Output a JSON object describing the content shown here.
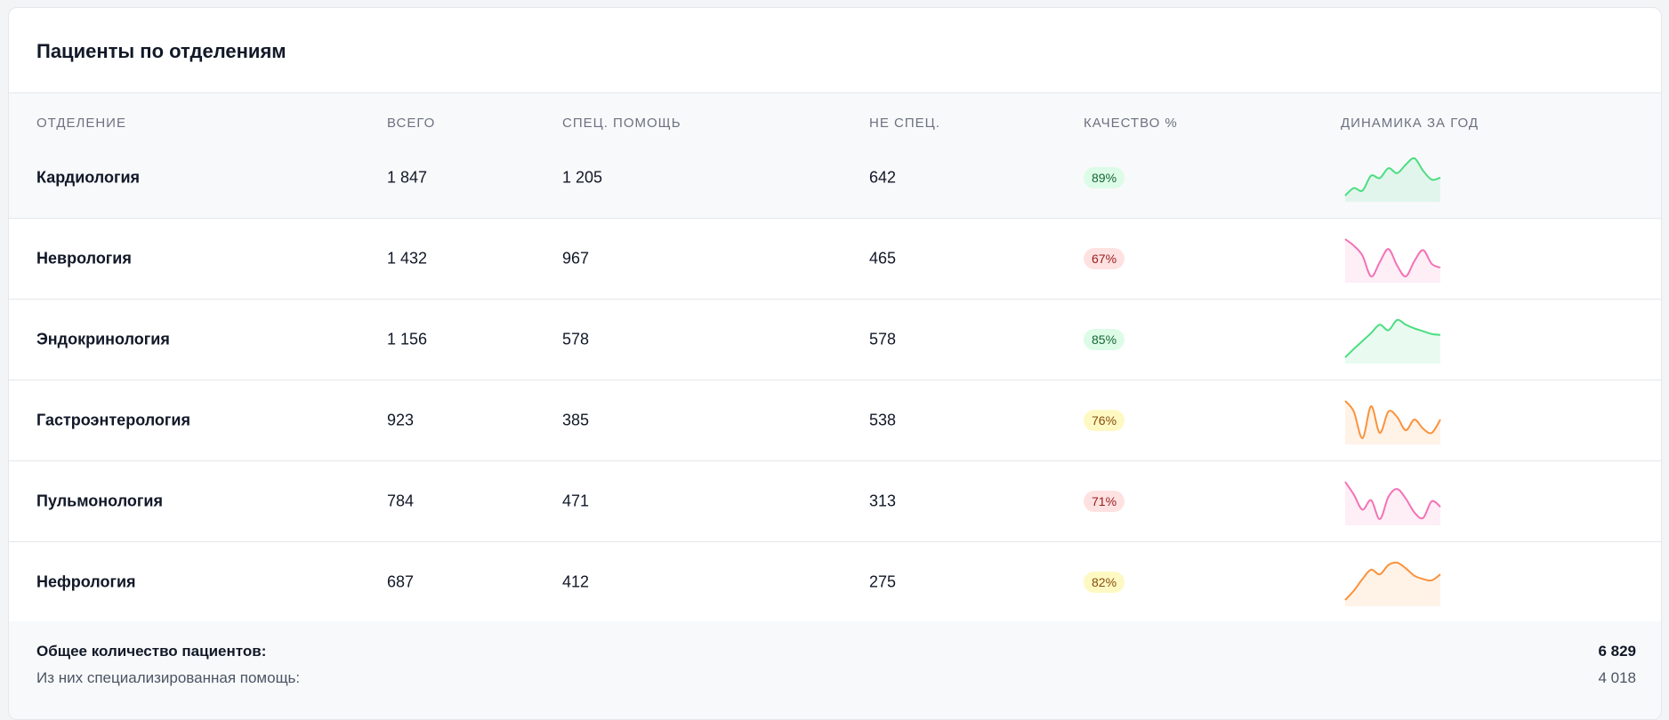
{
  "header": {
    "title": "Пациенты по отделениям"
  },
  "table": {
    "columns": [
      "ОТДЕЛЕНИЕ",
      "ВСЕГО",
      "СПЕЦ. ПОМОЩЬ",
      "НЕ СПЕЦ.",
      "КАЧЕСТВО %",
      "ДИНАМИКА ЗА ГОД"
    ],
    "rows": [
      {
        "department": "Кардиология",
        "total": "1 847",
        "special": "1 205",
        "non_special": "642",
        "quality": "89%",
        "color": "green",
        "trend": [
          10,
          25,
          20,
          50,
          45,
          65,
          55,
          72,
          85,
          60,
          42,
          46
        ]
      },
      {
        "department": "Неврология",
        "total": "1 432",
        "special": "967",
        "non_special": "465",
        "quality": "67%",
        "color": "pink",
        "trend": [
          90,
          78,
          60,
          22,
          48,
          72,
          42,
          22,
          50,
          70,
          45,
          38
        ]
      },
      {
        "department": "Эндокринология",
        "total": "1 156",
        "special": "578",
        "non_special": "578",
        "quality": "85%",
        "color": "green",
        "trend": [
          10,
          28,
          45,
          62,
          80,
          68,
          90,
          80,
          72,
          66,
          60,
          58
        ]
      },
      {
        "department": "Гастроэнтерология",
        "total": "923",
        "special": "385",
        "non_special": "538",
        "quality": "76%",
        "color": "orange",
        "trend": [
          90,
          70,
          20,
          80,
          30,
          70,
          60,
          35,
          55,
          38,
          30,
          55
        ]
      },
      {
        "department": "Пульмонология",
        "total": "784",
        "special": "471",
        "non_special": "313",
        "quality": "71%",
        "color": "pink",
        "trend": [
          85,
          62,
          35,
          52,
          18,
          58,
          72,
          55,
          30,
          20,
          50,
          40
        ]
      },
      {
        "department": "Нефрология",
        "total": "687",
        "special": "412",
        "non_special": "275",
        "quality": "82%",
        "color": "orange",
        "trend": [
          10,
          30,
          55,
          75,
          65,
          85,
          90,
          78,
          62,
          55,
          52,
          65
        ]
      }
    ]
  },
  "summary": [
    {
      "label": "Общее количество пациентов:",
      "value": "6 829"
    },
    {
      "label": "Из них специализированная помощь:",
      "value": "4 018"
    }
  ]
}
